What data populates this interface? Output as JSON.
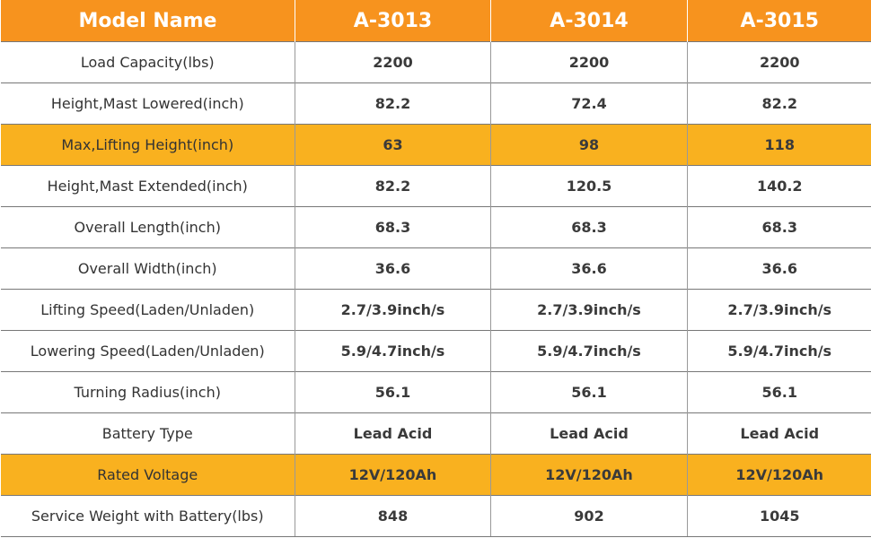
{
  "table": {
    "header": [
      "Model Name",
      "A-3013",
      "A-3014",
      "A-3015"
    ],
    "rows": [
      [
        "Load Capacity(lbs)",
        "2200",
        "2200",
        "2200"
      ],
      [
        "Height,Mast Lowered(inch)",
        "82.2",
        "72.4",
        "82.2"
      ],
      [
        "Max,Lifting Height(inch)",
        "63",
        "98",
        "118"
      ],
      [
        "Height,Mast Extended(inch)",
        "82.2",
        "120.5",
        "140.2"
      ],
      [
        "Overall Length(inch)",
        "68.3",
        "68.3",
        "68.3"
      ],
      [
        "Overall Width(inch)",
        "36.6",
        "36.6",
        "36.6"
      ],
      [
        "Lifting Speed(Laden/Unladen)",
        "2.7/3.9inch/s",
        "2.7/3.9inch/s",
        "2.7/3.9inch/s"
      ],
      [
        "Lowering Speed(Laden/Unladen)",
        "5.9/4.7inch/s",
        "5.9/4.7inch/s",
        "5.9/4.7inch/s"
      ],
      [
        "Turning Radius(inch)",
        "56.1",
        "56.1",
        "56.1"
      ],
      [
        "Battery Type",
        "Lead Acid",
        "Lead Acid",
        "Lead Acid"
      ],
      [
        "Rated Voltage",
        "12V/120Ah",
        "12V/120Ah",
        "12V/120Ah"
      ],
      [
        "Service Weight with Battery(lbs)",
        "848",
        "902",
        "1045"
      ]
    ]
  }
}
